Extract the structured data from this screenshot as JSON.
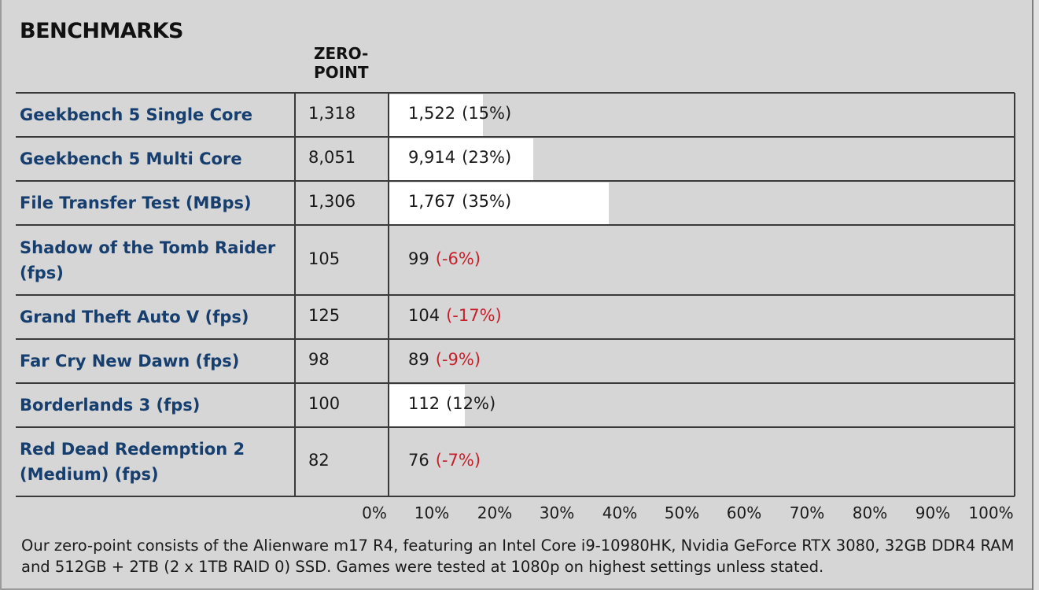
{
  "title": "BENCHMARKS",
  "column_header": [
    "ZERO-",
    "POINT"
  ],
  "chart_data": {
    "type": "bar",
    "orientation": "horizontal",
    "title": "BENCHMARKS",
    "xlabel": "",
    "ylabel": "",
    "xlim": [
      0,
      100
    ],
    "x_ticks": [
      "0%",
      "10%",
      "20%",
      "30%",
      "40%",
      "50%",
      "60%",
      "70%",
      "80%",
      "90%",
      "100%"
    ],
    "grid": true,
    "categories": [
      [
        "Geekbench 5 Single Core"
      ],
      [
        "Geekbench 5 Multi Core"
      ],
      [
        "File Transfer Test (MBps)"
      ],
      [
        "Shadow of the Tomb Raider",
        "(fps)"
      ],
      [
        "Grand Theft Auto V (fps)"
      ],
      [
        "Far Cry New Dawn (fps)"
      ],
      [
        "Borderlands 3 (fps)"
      ],
      [
        "Red Dead Redemption 2",
        "(Medium) (fps)"
      ]
    ],
    "zero_point": [
      "1,318",
      "8,051",
      "1,306",
      "105",
      "125",
      "98",
      "100",
      "82"
    ],
    "values": [
      "1,522",
      "9,914",
      "1,767",
      "99",
      "104",
      "89",
      "112",
      "76"
    ],
    "percent_labels": [
      "(15%)",
      "(23%)",
      "(35%)",
      "(-6%)",
      "(-17%)",
      "(-9%)",
      "(12%)",
      "(-7%)"
    ],
    "percent_change": [
      15,
      23,
      35,
      -6,
      -17,
      -9,
      12,
      -7
    ]
  },
  "colors": {
    "background": "#d6d6d6",
    "bar": "#ffffff",
    "label": "#163e6e",
    "negative": "#c8202a",
    "grid": "#3a3a3a"
  },
  "footnote": "Our zero-point consists of the Alienware m17 R4, featuring an Intel Core i9-10980HK, Nvidia GeForce RTX 3080, 32GB DDR4 RAM and 512GB + 2TB (2 x 1TB RAID 0) SSD. Games were tested at 1080p on highest settings unless stated."
}
